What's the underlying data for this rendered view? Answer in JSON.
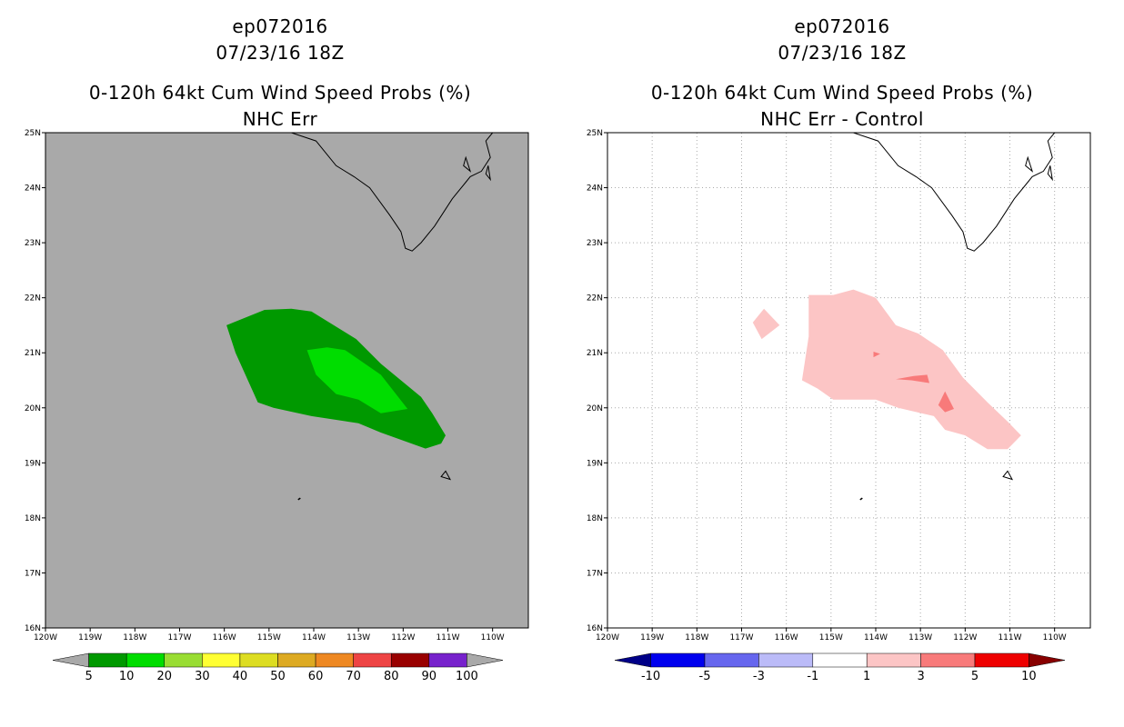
{
  "left_panel": {
    "title_line1": "ep072016",
    "title_line2": "07/23/16 18Z",
    "title_line3": "0-120h 64kt Cum Wind Speed Probs (%)",
    "title_line4": "NHC Err",
    "background_color": "#a9a9a9"
  },
  "right_panel": {
    "title_line1": "ep072016",
    "title_line2": "07/23/16 18Z",
    "title_line3": "0-120h 64kt Cum Wind Speed Probs (%)",
    "title_line4": "NHC Err - Control",
    "background_color": "#ffffff"
  },
  "chart_data": [
    {
      "type": "heatmap",
      "title": "0-120h 64kt Cum Wind Speed Probs (%) NHC Err",
      "x_ticks": [
        "120W",
        "119W",
        "118W",
        "117W",
        "116W",
        "115W",
        "114W",
        "113W",
        "112W",
        "111W",
        "110W"
      ],
      "y_ticks": [
        "16N",
        "17N",
        "18N",
        "19N",
        "20N",
        "21N",
        "22N",
        "23N",
        "24N",
        "25N"
      ],
      "xlim": [
        -120,
        -109.2
      ],
      "ylim": [
        16,
        25
      ],
      "grid": false,
      "contours": [
        {
          "level": "5-10",
          "color": "#009900",
          "lonlat": [
            [
              -115.95,
              21.5
            ],
            [
              -115.1,
              21.78
            ],
            [
              -114.5,
              21.8
            ],
            [
              -114.05,
              21.75
            ],
            [
              -113.05,
              21.25
            ],
            [
              -112.5,
              20.8
            ],
            [
              -111.6,
              20.2
            ],
            [
              -111.35,
              19.9
            ],
            [
              -111.05,
              19.5
            ],
            [
              -111.15,
              19.35
            ],
            [
              -111.5,
              19.26
            ],
            [
              -112.5,
              19.55
            ],
            [
              -113.0,
              19.72
            ],
            [
              -114.05,
              19.85
            ],
            [
              -114.9,
              20.0
            ],
            [
              -115.25,
              20.1
            ],
            [
              -115.75,
              21.0
            ]
          ]
        },
        {
          "level": "10-20",
          "color": "#00dd00",
          "lonlat": [
            [
              -114.15,
              21.05
            ],
            [
              -113.7,
              21.1
            ],
            [
              -113.3,
              21.05
            ],
            [
              -112.5,
              20.6
            ],
            [
              -111.9,
              19.98
            ],
            [
              -112.5,
              19.9
            ],
            [
              -113.0,
              20.15
            ],
            [
              -113.5,
              20.25
            ],
            [
              -113.95,
              20.6
            ]
          ]
        }
      ]
    },
    {
      "type": "heatmap",
      "title": "0-120h 64kt Cum Wind Speed Probs (%) NHC Err - Control",
      "x_ticks": [
        "120W",
        "119W",
        "118W",
        "117W",
        "116W",
        "115W",
        "114W",
        "113W",
        "112W",
        "111W",
        "110W"
      ],
      "y_ticks": [
        "16N",
        "17N",
        "18N",
        "19N",
        "20N",
        "21N",
        "22N",
        "23N",
        "24N",
        "25N"
      ],
      "xlim": [
        -120,
        -109.2
      ],
      "ylim": [
        16,
        25
      ],
      "grid": true,
      "contours": [
        {
          "level": "1-3",
          "color": "#fcc5c5",
          "lonlat": [
            [
              -116.75,
              21.55
            ],
            [
              -116.5,
              21.8
            ],
            [
              -116.15,
              21.5
            ],
            [
              -116.55,
              21.25
            ]
          ]
        },
        {
          "level": "1-3",
          "color": "#fcc5c5",
          "lonlat": [
            [
              -115.5,
              22.05
            ],
            [
              -114.95,
              22.05
            ],
            [
              -114.5,
              22.15
            ],
            [
              -114.0,
              22.0
            ],
            [
              -113.55,
              21.5
            ],
            [
              -113.05,
              21.35
            ],
            [
              -112.5,
              21.05
            ],
            [
              -112.05,
              20.55
            ],
            [
              -111.5,
              20.1
            ],
            [
              -111.05,
              19.75
            ],
            [
              -110.75,
              19.5
            ],
            [
              -111.05,
              19.25
            ],
            [
              -111.5,
              19.25
            ],
            [
              -112.0,
              19.5
            ],
            [
              -112.45,
              19.6
            ],
            [
              -112.7,
              19.85
            ],
            [
              -113.5,
              20.0
            ],
            [
              -114.0,
              20.15
            ],
            [
              -114.95,
              20.15
            ],
            [
              -115.3,
              20.35
            ],
            [
              -115.65,
              20.5
            ],
            [
              -115.5,
              21.3
            ]
          ]
        },
        {
          "level": "3-5",
          "color": "#f87a7a",
          "lonlat": [
            [
              -113.15,
              20.58
            ],
            [
              -112.85,
              20.6
            ],
            [
              -112.8,
              20.45
            ],
            [
              -113.2,
              20.5
            ],
            [
              -113.55,
              20.52
            ]
          ]
        },
        {
          "level": "3-5",
          "color": "#f87a7a",
          "lonlat": [
            [
              -112.45,
              20.3
            ],
            [
              -112.25,
              19.98
            ],
            [
              -112.45,
              19.92
            ],
            [
              -112.6,
              20.05
            ]
          ]
        },
        {
          "level": "3-5",
          "color": "#f87a7a",
          "lonlat": [
            [
              -114.05,
              21.02
            ],
            [
              -113.9,
              20.98
            ],
            [
              -114.05,
              20.92
            ]
          ]
        }
      ]
    }
  ],
  "left_colorbar": {
    "levels": [
      "5",
      "10",
      "20",
      "30",
      "40",
      "50",
      "60",
      "70",
      "80",
      "90",
      "100"
    ],
    "colors": [
      "#009900",
      "#00dd00",
      "#99dd33",
      "#ffff33",
      "#dddd22",
      "#ddaa22",
      "#ee8822",
      "#ee4444",
      "#990000",
      "#7722cc"
    ],
    "underflow_color": "#a9a9a9",
    "overflow_color": "#a9a9a9"
  },
  "right_colorbar": {
    "levels": [
      "-10",
      "-5",
      "-3",
      "-1",
      "1",
      "3",
      "5",
      "10"
    ],
    "colors": [
      "#0000ee",
      "#6666ee",
      "#bbbbf8",
      "#ffffff",
      "#fcc5c5",
      "#f87a7a",
      "#ee0000"
    ],
    "underflow_color": "#000088",
    "overflow_color": "#880000"
  }
}
